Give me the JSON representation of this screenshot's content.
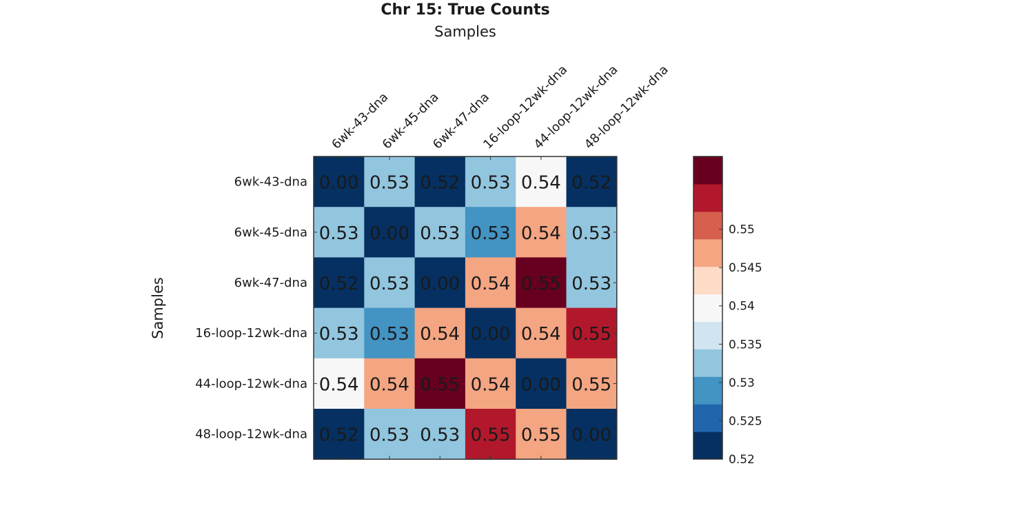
{
  "chart_data": {
    "type": "heatmap",
    "title": "Chr 15: True Counts",
    "xlabel": "Samples",
    "ylabel": "Samples",
    "x_categories": [
      "6wk-43-dna",
      "6wk-45-dna",
      "6wk-47-dna",
      "16-loop-12wk-dna",
      "44-loop-12wk-dna",
      "48-loop-12wk-dna"
    ],
    "y_categories": [
      "6wk-43-dna",
      "6wk-45-dna",
      "6wk-47-dna",
      "16-loop-12wk-dna",
      "44-loop-12wk-dna",
      "48-loop-12wk-dna"
    ],
    "values": [
      [
        0.0,
        0.53,
        0.52,
        0.53,
        0.54,
        0.52
      ],
      [
        0.53,
        0.0,
        0.53,
        0.53,
        0.54,
        0.53
      ],
      [
        0.52,
        0.53,
        0.0,
        0.54,
        0.55,
        0.53
      ],
      [
        0.53,
        0.53,
        0.54,
        0.0,
        0.54,
        0.55
      ],
      [
        0.54,
        0.54,
        0.55,
        0.54,
        0.0,
        0.55
      ],
      [
        0.52,
        0.53,
        0.53,
        0.55,
        0.55,
        0.0
      ]
    ],
    "labels": [
      [
        "0.00",
        "0.53",
        "0.52",
        "0.53",
        "0.54",
        "0.52"
      ],
      [
        "0.53",
        "0.00",
        "0.53",
        "0.53",
        "0.54",
        "0.53"
      ],
      [
        "0.52",
        "0.53",
        "0.00",
        "0.54",
        "0.55",
        "0.53"
      ],
      [
        "0.53",
        "0.53",
        "0.54",
        "0.00",
        "0.54",
        "0.55"
      ],
      [
        "0.54",
        "0.54",
        "0.55",
        "0.54",
        "0.00",
        "0.55"
      ],
      [
        "0.52",
        "0.53",
        "0.53",
        "0.55",
        "0.55",
        "0.00"
      ]
    ],
    "cell_colors": [
      [
        "#053061",
        "#92c5de",
        "#053061",
        "#92c5de",
        "#f7f7f7",
        "#053061"
      ],
      [
        "#92c5de",
        "#053061",
        "#92c5de",
        "#4393c3",
        "#f4a582",
        "#92c5de"
      ],
      [
        "#053061",
        "#92c5de",
        "#053061",
        "#f4a582",
        "#67001f",
        "#92c5de"
      ],
      [
        "#92c5de",
        "#4393c3",
        "#f4a582",
        "#053061",
        "#f4a582",
        "#b2182b"
      ],
      [
        "#f7f7f7",
        "#f4a582",
        "#67001f",
        "#f4a582",
        "#053061",
        "#f4a582"
      ],
      [
        "#053061",
        "#92c5de",
        "#92c5de",
        "#b2182b",
        "#f4a582",
        "#053061"
      ]
    ],
    "colorbar": {
      "range": [
        0.52,
        0.5595
      ],
      "colors": [
        "#053061",
        "#2166ac",
        "#4393c3",
        "#92c5de",
        "#d1e5f0",
        "#f7f7f7",
        "#fddbc7",
        "#f4a582",
        "#d6604d",
        "#b2182b",
        "#67001f"
      ],
      "ticks": [
        0.52,
        0.525,
        0.53,
        0.535,
        0.54,
        0.545,
        0.55
      ],
      "tick_labels": [
        "0.52",
        "0.525",
        "0.53",
        "0.535",
        "0.54",
        "0.545",
        "0.55"
      ]
    }
  }
}
